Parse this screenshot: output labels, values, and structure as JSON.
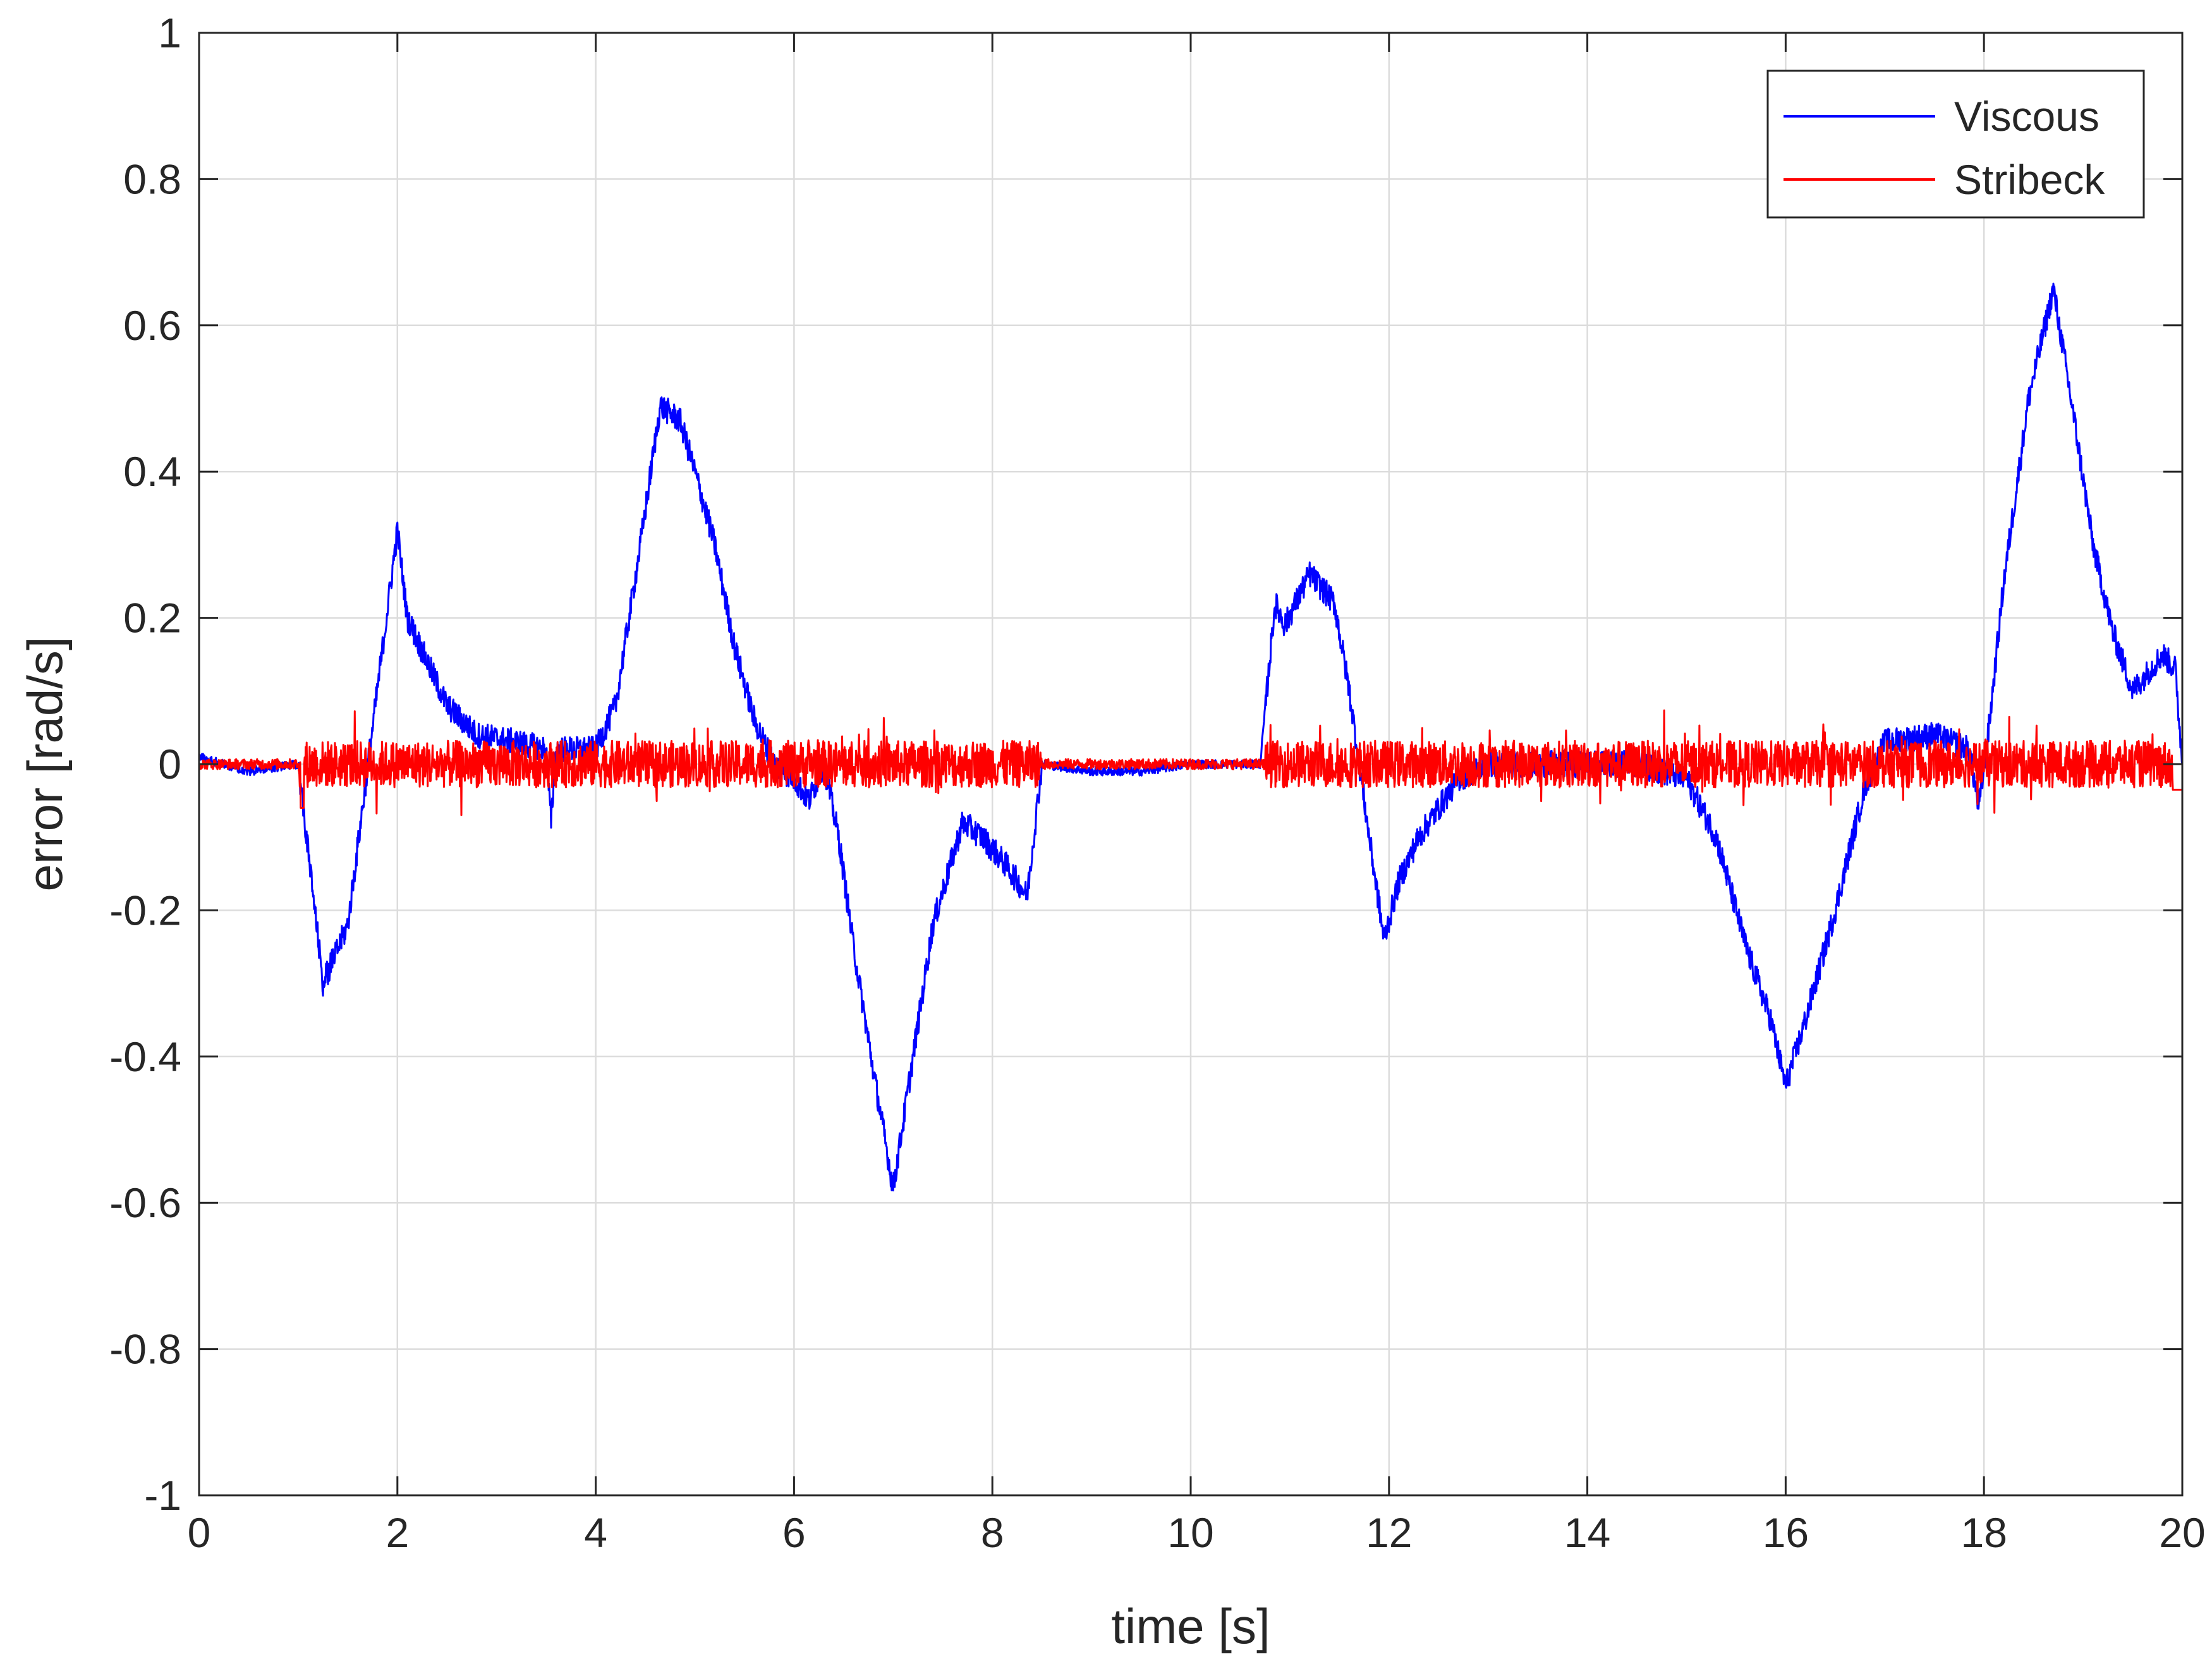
{
  "chart_data": {
    "type": "line",
    "title": "",
    "xlabel": "time [s]",
    "ylabel": "error [rad/s]",
    "xlim": [
      0,
      20
    ],
    "ylim": [
      -1,
      1
    ],
    "xticks": [
      0,
      2,
      4,
      6,
      8,
      10,
      12,
      14,
      16,
      18,
      20
    ],
    "xtick_labels": [
      "0",
      "2",
      "4",
      "6",
      "8",
      "10",
      "12",
      "14",
      "16",
      "18",
      "20"
    ],
    "yticks": [
      -1,
      -0.8,
      -0.6,
      -0.4,
      -0.2,
      0,
      0.2,
      0.4,
      0.6,
      0.8,
      1
    ],
    "ytick_labels": [
      "-1",
      "-0.8",
      "-0.6",
      "-0.4",
      "-0.2",
      "0",
      "0.2",
      "0.4",
      "0.6",
      "0.8",
      "1"
    ],
    "grid": true,
    "legend_position": "top-right",
    "series": [
      {
        "name": "Viscous",
        "color": "#0000ff",
        "points": [
          [
            0,
            0.01
          ],
          [
            0.5,
            -0.01
          ],
          [
            1.0,
            0.0
          ],
          [
            1.05,
            -0.06
          ],
          [
            1.25,
            -0.3
          ],
          [
            1.5,
            -0.22
          ],
          [
            1.75,
            0.05
          ],
          [
            2.0,
            0.32
          ],
          [
            2.1,
            0.2
          ],
          [
            2.3,
            0.14
          ],
          [
            2.5,
            0.08
          ],
          [
            2.8,
            0.04
          ],
          [
            3.2,
            0.03
          ],
          [
            3.5,
            0.02
          ],
          [
            3.55,
            -0.08
          ],
          [
            3.6,
            0.02
          ],
          [
            4.0,
            0.02
          ],
          [
            4.2,
            0.08
          ],
          [
            4.45,
            0.3
          ],
          [
            4.65,
            0.49
          ],
          [
            4.85,
            0.47
          ],
          [
            5.0,
            0.4
          ],
          [
            5.2,
            0.3
          ],
          [
            5.4,
            0.16
          ],
          [
            5.6,
            0.06
          ],
          [
            5.8,
            0.0
          ],
          [
            6.0,
            -0.02
          ],
          [
            6.15,
            -0.05
          ],
          [
            6.3,
            0.0
          ],
          [
            6.45,
            -0.1
          ],
          [
            6.6,
            -0.25
          ],
          [
            6.8,
            -0.42
          ],
          [
            7.0,
            -0.58
          ],
          [
            7.2,
            -0.4
          ],
          [
            7.4,
            -0.22
          ],
          [
            7.7,
            -0.08
          ],
          [
            7.9,
            -0.1
          ],
          [
            8.15,
            -0.14
          ],
          [
            8.35,
            -0.18
          ],
          [
            8.5,
            0.0
          ],
          [
            9.0,
            -0.01
          ],
          [
            9.5,
            -0.01
          ],
          [
            10.0,
            0.0
          ],
          [
            10.7,
            0.0
          ],
          [
            10.85,
            0.22
          ],
          [
            10.95,
            0.19
          ],
          [
            11.2,
            0.26
          ],
          [
            11.45,
            0.22
          ],
          [
            11.6,
            0.1
          ],
          [
            11.8,
            -0.1
          ],
          [
            11.95,
            -0.24
          ],
          [
            12.1,
            -0.16
          ],
          [
            12.3,
            -0.1
          ],
          [
            12.5,
            -0.06
          ],
          [
            12.7,
            -0.02
          ],
          [
            13.0,
            0.0
          ],
          [
            13.5,
            0.0
          ],
          [
            14.0,
            0.0
          ],
          [
            14.5,
            0.0
          ],
          [
            15.0,
            -0.02
          ],
          [
            15.3,
            -0.1
          ],
          [
            15.6,
            -0.25
          ],
          [
            15.85,
            -0.35
          ],
          [
            16.0,
            -0.44
          ],
          [
            16.2,
            -0.35
          ],
          [
            16.5,
            -0.2
          ],
          [
            16.8,
            -0.03
          ],
          [
            17.0,
            0.03
          ],
          [
            17.5,
            0.04
          ],
          [
            17.85,
            0.02
          ],
          [
            17.95,
            -0.06
          ],
          [
            18.05,
            0.05
          ],
          [
            18.2,
            0.25
          ],
          [
            18.45,
            0.5
          ],
          [
            18.7,
            0.65
          ],
          [
            18.9,
            0.48
          ],
          [
            19.1,
            0.3
          ],
          [
            19.3,
            0.18
          ],
          [
            19.5,
            0.1
          ],
          [
            19.8,
            0.15
          ],
          [
            19.93,
            0.13
          ],
          [
            20.0,
            0.0
          ]
        ]
      },
      {
        "name": "Stribeck",
        "color": "#ff0000",
        "points": [
          [
            0,
            0.0
          ],
          [
            20.0,
            0.0
          ]
        ]
      }
    ]
  }
}
